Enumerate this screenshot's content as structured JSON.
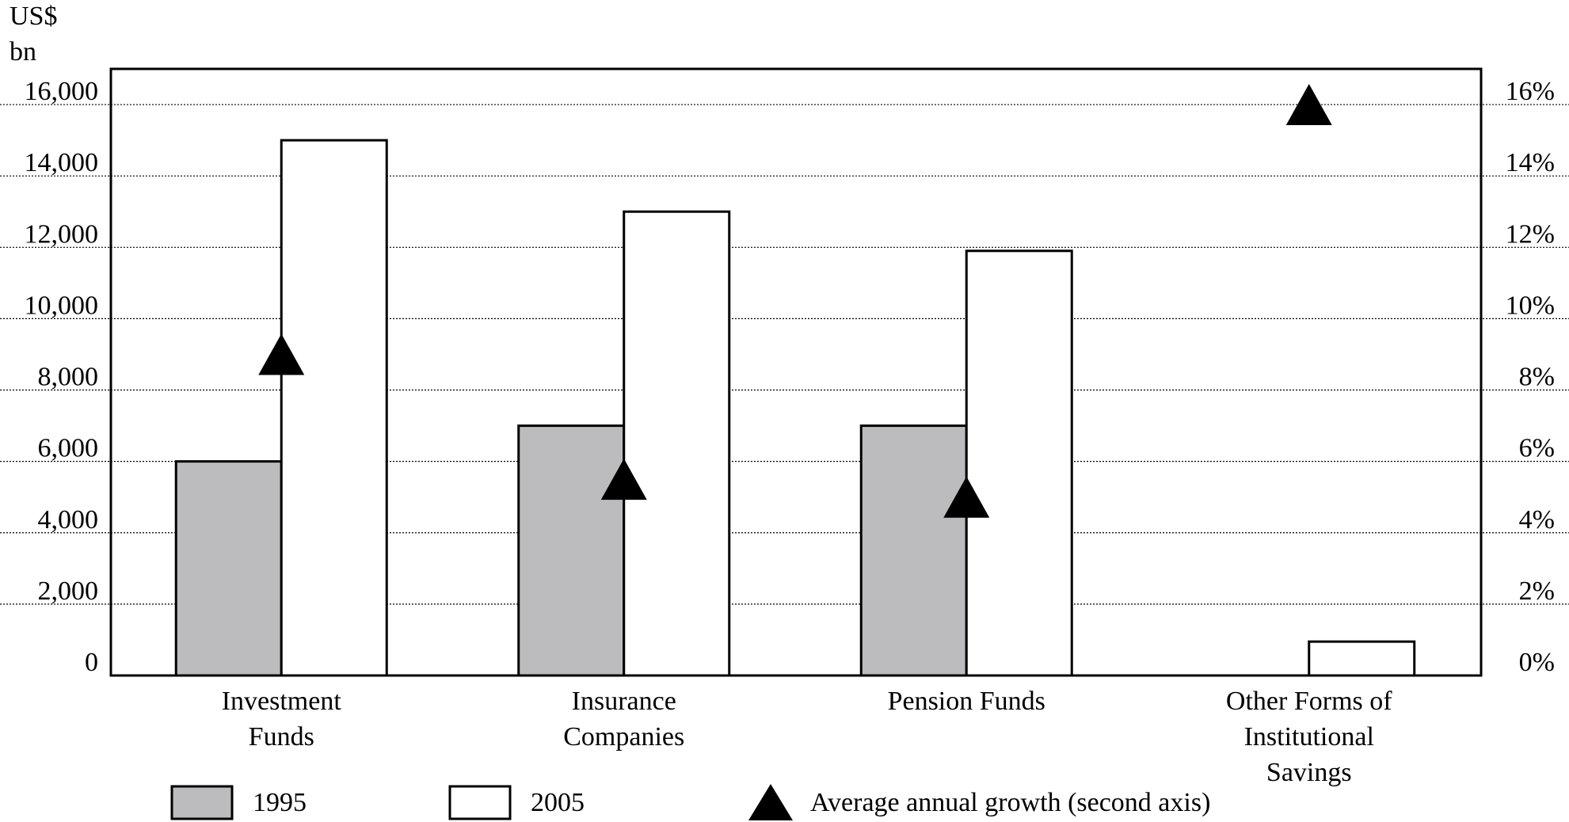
{
  "chart_data": {
    "type": "bar",
    "ylabel_line1": "US$",
    "ylabel_line2": "bn",
    "categories": [
      [
        "Investment",
        "Funds"
      ],
      [
        "Insurance",
        "Companies"
      ],
      [
        "Pension Funds"
      ],
      [
        "Other Forms of",
        "Institutional",
        "Savings"
      ]
    ],
    "series": [
      {
        "name": "1995",
        "values": [
          6000,
          7000,
          7000,
          0
        ],
        "color": "#bcbcbe"
      },
      {
        "name": "2005",
        "values": [
          15000,
          13000,
          11900,
          950
        ],
        "color": "#ffffff"
      }
    ],
    "growth": {
      "name": "Average annual growth (second axis)",
      "values": [
        9,
        5.5,
        5,
        16
      ]
    },
    "y_left": {
      "min": 0,
      "max": 17000,
      "ticks": [
        0,
        2000,
        4000,
        6000,
        8000,
        10000,
        12000,
        14000,
        16000
      ],
      "tick_labels": [
        "0",
        "2,000",
        "4,000",
        "6,000",
        "8,000",
        "10,000",
        "12,000",
        "14,000",
        "16,000"
      ]
    },
    "y_right": {
      "min": 0,
      "max": 17,
      "ticks": [
        0,
        2,
        4,
        6,
        8,
        10,
        12,
        14,
        16
      ],
      "tick_labels": [
        "0%",
        "2%",
        "4%",
        "6%",
        "8%",
        "10%",
        "12%",
        "14%",
        "16%"
      ]
    },
    "grid": true,
    "legend_position": "bottom"
  }
}
